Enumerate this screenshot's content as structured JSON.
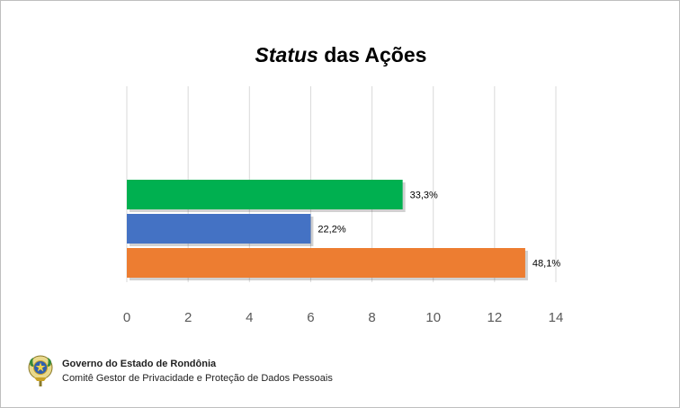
{
  "title": {
    "italic_part": "Status",
    "rest": " das Ações"
  },
  "chart_data": {
    "type": "bar",
    "orientation": "horizontal",
    "series": [
      {
        "value": 9,
        "label": "33,3%",
        "color": "#00b050"
      },
      {
        "value": 6,
        "label": "22,2%",
        "color": "#4472c4"
      },
      {
        "value": 13,
        "label": "48,1%",
        "color": "#ed7d31"
      }
    ],
    "xlim": [
      0,
      14
    ],
    "xticks": [
      "0",
      "2",
      "4",
      "6",
      "8",
      "10",
      "12",
      "14"
    ],
    "grid": "vertical",
    "legend": "none"
  },
  "footer": {
    "org_name": "Governo do Estado de Rondônia",
    "org_sub": "Comitê Gestor de Privacidade e Proteção de Dados Pessoais",
    "logo_icon": "state-coat-of-arms-icon"
  }
}
